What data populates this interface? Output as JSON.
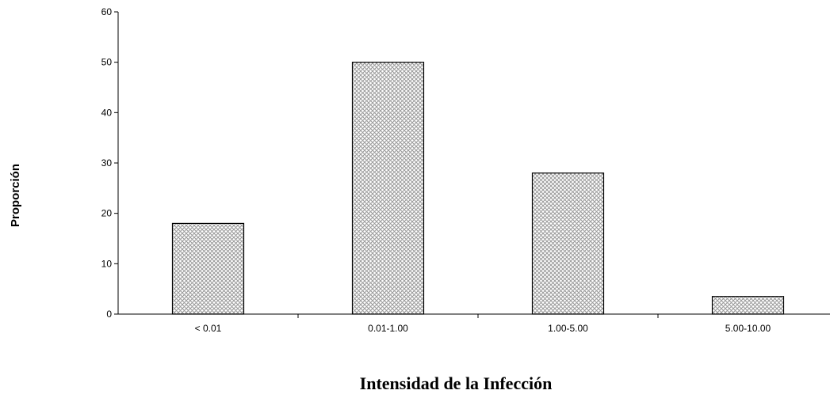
{
  "chart_data": {
    "type": "bar",
    "categories": [
      "< 0.01",
      "0.01-1.00",
      "1.00-5.00",
      "5.00-10.00"
    ],
    "values": [
      18,
      50,
      28,
      3.5
    ],
    "xlabel": "Intensidad de la Infección",
    "ylabel": "Proporción",
    "ylim": [
      0,
      60
    ],
    "yticks": [
      0,
      10,
      20,
      30,
      40,
      50,
      60
    ],
    "grid": false,
    "legend": "none",
    "bar_fill": "crosshatch",
    "bar_color": "#b8b8b8"
  }
}
